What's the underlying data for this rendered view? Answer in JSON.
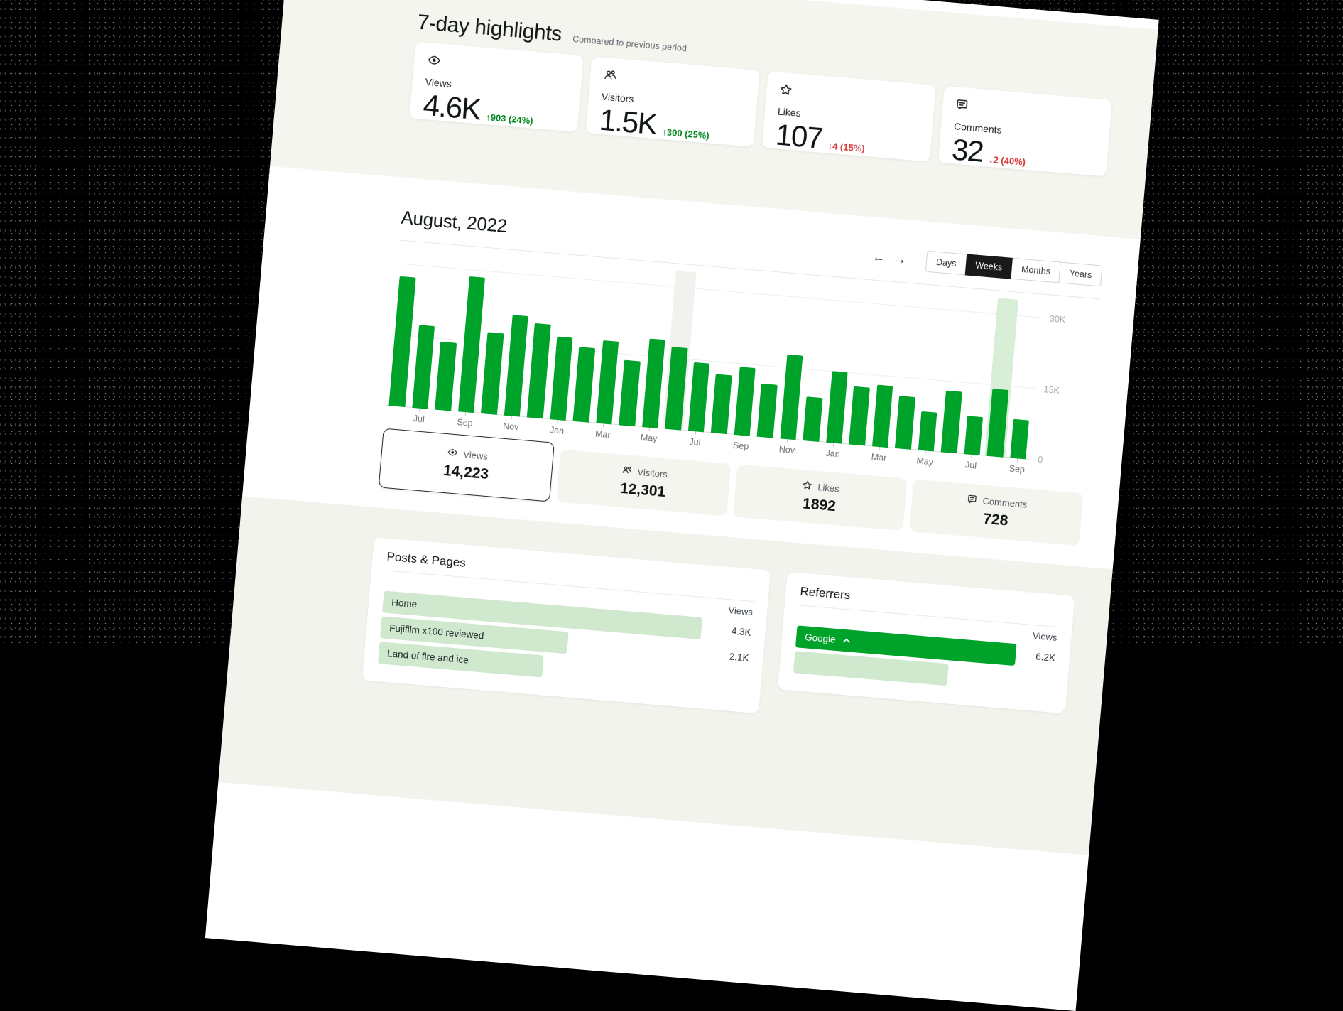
{
  "highlights": {
    "title": "7-day highlights",
    "subtitle": "Compared to previous period",
    "cards": [
      {
        "icon": "eye-icon",
        "label": "Views",
        "value": "4.6K",
        "delta": "↑903 (24%)",
        "trend": "up"
      },
      {
        "icon": "people-icon",
        "label": "Visitors",
        "value": "1.5K",
        "delta": "↑300 (25%)",
        "trend": "up"
      },
      {
        "icon": "star-icon",
        "label": "Likes",
        "value": "107",
        "delta": "↓4 (15%)",
        "trend": "down"
      },
      {
        "icon": "comment-icon",
        "label": "Comments",
        "value": "32",
        "delta": "↓2 (40%)",
        "trend": "down"
      }
    ]
  },
  "period": {
    "title": "August, 2022",
    "prev_icon": "←",
    "next_icon": "→",
    "tabs": [
      {
        "label": "Days",
        "selected": false
      },
      {
        "label": "Weeks",
        "selected": true
      },
      {
        "label": "Months",
        "selected": false
      },
      {
        "label": "Years",
        "selected": false
      }
    ]
  },
  "chart_data": {
    "type": "bar",
    "unit": "views",
    "ylim": [
      0,
      30000
    ],
    "y_ticks": [
      "0",
      "15K",
      "30K"
    ],
    "grid": true,
    "legend": "none",
    "bar_color": "#00a32a",
    "selected_band_color": "#d8eed6",
    "hover_band_color": "#f1f1ee",
    "selected_index": 26,
    "hover_index": 12,
    "x_labels": [
      "",
      "Jul",
      "",
      "Sep",
      "",
      "Nov",
      "",
      "Jan",
      "",
      "Mar",
      "",
      "May",
      "",
      "Jul",
      "",
      "Sep",
      "",
      "Nov",
      "",
      "Jan",
      "",
      "Mar",
      "",
      "May",
      "",
      "Jul",
      "",
      "Sep"
    ],
    "values": [
      27500,
      17600,
      14400,
      28700,
      17300,
      21300,
      20000,
      17500,
      15800,
      17600,
      13800,
      18700,
      17400,
      14500,
      12500,
      14400,
      11300,
      17800,
      9300,
      15100,
      12300,
      13100,
      11100,
      8200,
      13000,
      8100,
      14223,
      8200
    ]
  },
  "summary_tabs": [
    {
      "icon": "eye-icon",
      "label": "Views",
      "value": "14,223",
      "selected": true
    },
    {
      "icon": "people-icon",
      "label": "Visitors",
      "value": "12,301",
      "selected": false
    },
    {
      "icon": "star-icon",
      "label": "Likes",
      "value": "1892",
      "selected": false
    },
    {
      "icon": "comment-icon",
      "label": "Comments",
      "value": "728",
      "selected": false
    }
  ],
  "posts_pages": {
    "title": "Posts & Pages",
    "views_header": "Views",
    "rows": [
      {
        "label": "Home",
        "value": "4.3K",
        "bar_pct": 97
      },
      {
        "label": "Fujifilm x100 reviewed",
        "value": "2.1K",
        "bar_pct": 57
      },
      {
        "label": "Land of fire and ice",
        "value": "",
        "bar_pct": 50
      }
    ]
  },
  "referrers": {
    "title": "Referrers",
    "views_header": "Views",
    "rows": [
      {
        "label": "Google",
        "value": "6.2K",
        "bar_pct": 100,
        "expanded": true
      },
      {
        "label": "",
        "value": "",
        "bar_pct": 70
      }
    ]
  },
  "colors": {
    "accent_green": "#00a32a",
    "delta_up": "#00861e",
    "delta_down": "#d63638",
    "light_green_bar": "#cfe8ce",
    "section_beige": "#f5f5ef"
  }
}
